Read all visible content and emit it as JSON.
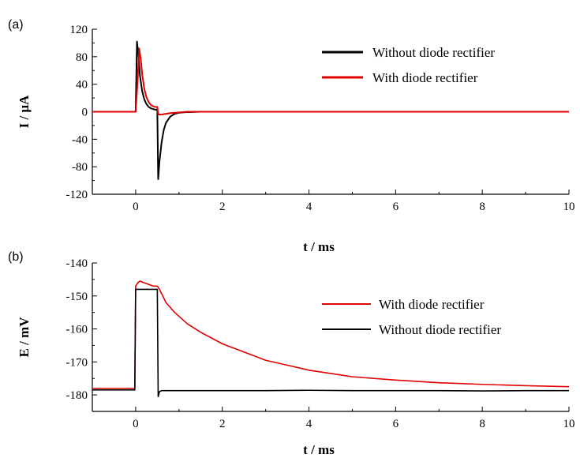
{
  "chart_data": [
    {
      "panel_label": "(a)",
      "type": "line",
      "xlabel": "t / ms",
      "ylabel": "I / μA",
      "xlim": [
        -1,
        10
      ],
      "ylim": [
        -120,
        120
      ],
      "xticks": [
        "0",
        "2",
        "4",
        "6",
        "8",
        "10"
      ],
      "yticks": [
        "120",
        "80",
        "40",
        "0",
        "-40",
        "-80",
        "-120"
      ],
      "legend_position": "top-right",
      "series": [
        {
          "name": "Without diode rectifier",
          "color": "#000000",
          "x": [
            -1,
            0,
            0.03,
            0.06,
            0.1,
            0.15,
            0.2,
            0.25,
            0.3,
            0.35,
            0.4,
            0.45,
            0.5,
            0.52,
            0.55,
            0.6,
            0.65,
            0.7,
            0.8,
            0.9,
            1.0,
            1.2,
            1.5,
            10
          ],
          "y": [
            0,
            0,
            102,
            85,
            52,
            30,
            18,
            11,
            7,
            5,
            4,
            3,
            3,
            -98,
            -72,
            -44,
            -26,
            -16,
            -7,
            -3,
            -1.5,
            -0.5,
            0,
            0
          ]
        },
        {
          "name": "With diode rectifier",
          "color": "#e00000",
          "x": [
            -1,
            0,
            0.05,
            0.08,
            0.12,
            0.15,
            0.2,
            0.25,
            0.3,
            0.35,
            0.4,
            0.45,
            0.5,
            0.52,
            0.6,
            0.7,
            0.8,
            1.0,
            1.2,
            10
          ],
          "y": [
            0,
            0,
            50,
            92,
            75,
            55,
            33,
            21,
            14,
            10,
            8,
            7,
            7,
            -4,
            -4,
            -3,
            -2,
            -1,
            0,
            0
          ]
        }
      ]
    },
    {
      "panel_label": "(b)",
      "type": "line",
      "xlabel": "t / ms",
      "ylabel": "E / mV",
      "xlim": [
        -1,
        10
      ],
      "ylim": [
        -185,
        -140
      ],
      "xticks": [
        "0",
        "2",
        "4",
        "6",
        "8",
        "10"
      ],
      "yticks": [
        "-140",
        "-150",
        "-160",
        "-170",
        "-180"
      ],
      "legend_position": "right",
      "series": [
        {
          "name": "With diode rectifier",
          "color": "#e00000",
          "x": [
            -1,
            -0.02,
            0,
            0.05,
            0.1,
            0.2,
            0.3,
            0.4,
            0.5,
            0.55,
            0.7,
            0.9,
            1.2,
            1.5,
            2,
            2.5,
            3,
            3.5,
            4,
            4.5,
            5,
            6,
            7,
            8,
            9,
            10
          ],
          "y": [
            -178,
            -178,
            -147,
            -146,
            -145.5,
            -146,
            -146.5,
            -147,
            -147,
            -148,
            -152,
            -155,
            -158.5,
            -161,
            -164.5,
            -167,
            -169.5,
            -171,
            -172.5,
            -173.5,
            -174.5,
            -175.5,
            -176.3,
            -176.8,
            -177.2,
            -177.5
          ]
        },
        {
          "name": "Without diode rectifier",
          "color": "#000000",
          "x": [
            -1,
            -0.02,
            0,
            0.1,
            0.2,
            0.3,
            0.4,
            0.5,
            0.52,
            0.55,
            0.6,
            1,
            2,
            3,
            4,
            5,
            6,
            7,
            8,
            9,
            10
          ],
          "y": [
            -178.5,
            -178.5,
            -148,
            -148,
            -148,
            -148,
            -148,
            -148,
            -180.5,
            -179,
            -178.7,
            -178.7,
            -178.7,
            -178.7,
            -178.6,
            -178.7,
            -178.7,
            -178.7,
            -178.8,
            -178.7,
            -178.7
          ]
        }
      ]
    }
  ]
}
